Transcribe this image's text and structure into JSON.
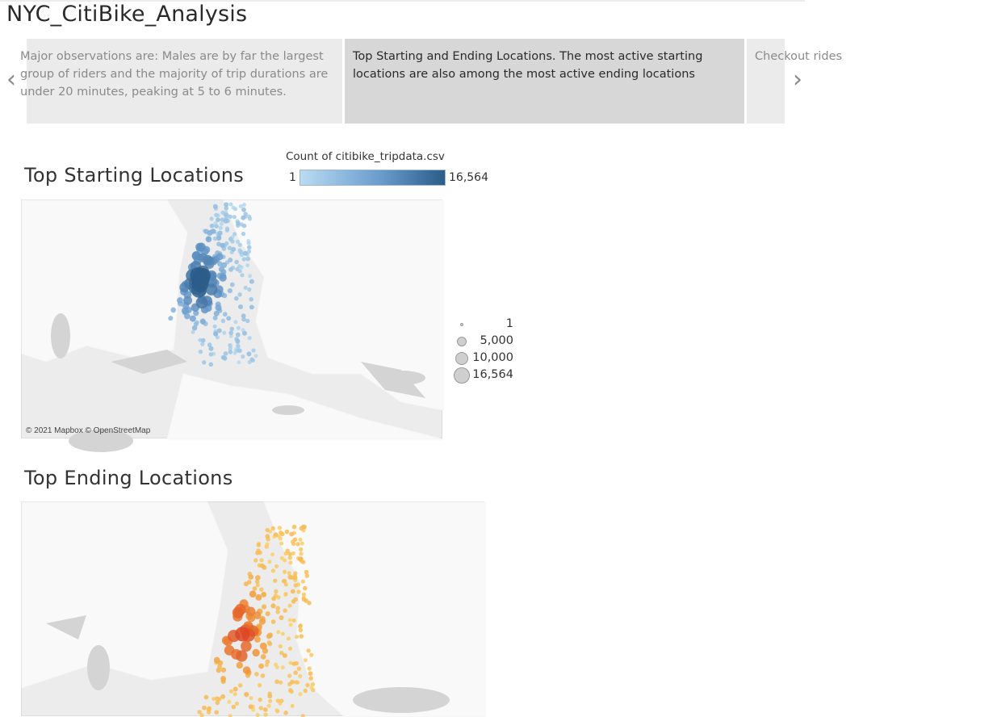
{
  "dashboard": {
    "title": "NYC_CitiBike_Analysis"
  },
  "story_points": [
    {
      "text": "Major observations are: Males are by far the largest group of riders and the majority of trip durations are under 20 minutes, peaking at 5 to 6 minutes."
    },
    {
      "text": "Top Starting and Ending Locations.  The most active starting locations are also among the most active ending locations"
    },
    {
      "text": "Checkout rides"
    }
  ],
  "nav": {
    "prev_icon": "chevron-left-icon",
    "next_icon": "chevron-right-icon"
  },
  "start_sheet": {
    "title": "Top Starting Locations",
    "color_legend_title": "Count of citibike_tripdata.csv",
    "color_legend_min": "1",
    "color_legend_max": "16,564",
    "size_legend": [
      "1",
      "5,000",
      "10,000",
      "16,564"
    ],
    "attribution": "© 2021 Mapbox © OpenStreetMap",
    "colors": {
      "low": "#b9dcf2",
      "mid": "#6a9ccd",
      "high": "#2b5c8a"
    }
  },
  "end_sheet": {
    "title": "Top Ending Locations",
    "colors": {
      "low": "#fbd46a",
      "mid": "#f29a3a",
      "high": "#d8341f"
    }
  }
}
